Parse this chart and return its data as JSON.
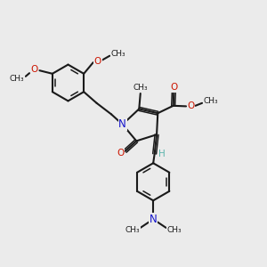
{
  "bg_color": "#ebebeb",
  "bond_color": "#1a1a1a",
  "N_color": "#1414cc",
  "O_color": "#cc1400",
  "H_color": "#5ab4ac",
  "figsize": [
    3.0,
    3.0
  ],
  "dpi": 100,
  "xlim": [
    0,
    10
  ],
  "ylim": [
    0,
    10
  ]
}
